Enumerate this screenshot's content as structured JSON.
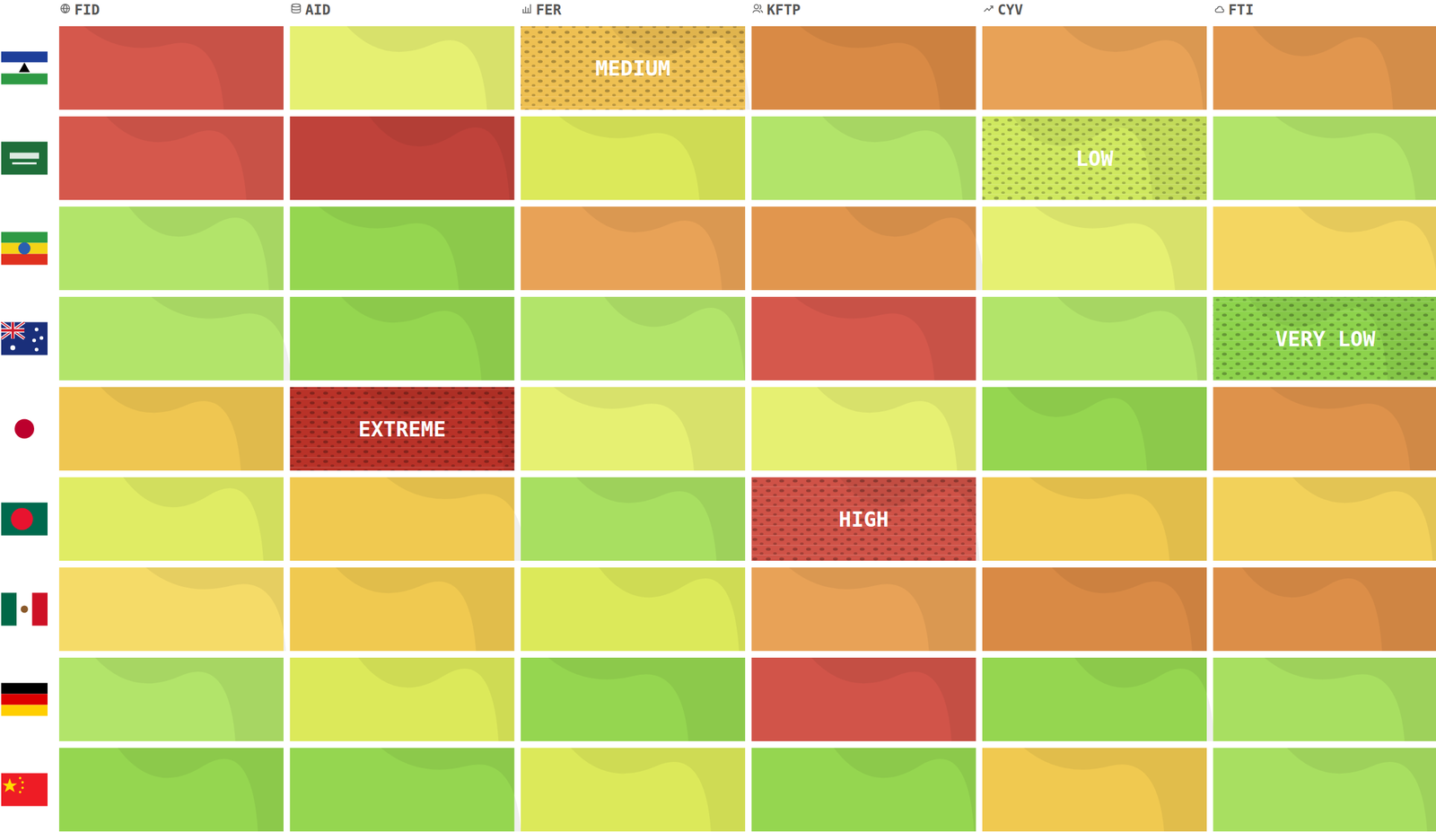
{
  "chart_data": {
    "type": "heatmap",
    "x_categories": [
      "FID",
      "AID",
      "FER",
      "KFTP",
      "CYV",
      "FTI"
    ],
    "value_range": [
      0,
      100
    ],
    "tick_labels": "x",
    "cells": [
      [
        82,
        32,
        50,
        66,
        60,
        63
      ],
      [
        82,
        93,
        25,
        15,
        22,
        15
      ],
      [
        15,
        6,
        60,
        63,
        32,
        42
      ],
      [
        15,
        6,
        15,
        82,
        15,
        4
      ],
      [
        48,
        96,
        32,
        32,
        6,
        64
      ],
      [
        28,
        47,
        12,
        85,
        47,
        44
      ],
      [
        40,
        47,
        25,
        60,
        66,
        65
      ],
      [
        15,
        25,
        6,
        84,
        6,
        12
      ],
      [
        6,
        6,
        25,
        6,
        47,
        12
      ]
    ],
    "cell_labels": [
      [
        null,
        null,
        "MEDIUM",
        null,
        null,
        null
      ],
      [
        null,
        null,
        null,
        null,
        "LOW",
        null
      ],
      [
        null,
        null,
        null,
        null,
        null,
        null
      ],
      [
        null,
        null,
        null,
        null,
        null,
        "VERY LOW"
      ],
      [
        null,
        "EXTREME",
        null,
        null,
        null,
        null
      ],
      [
        null,
        null,
        null,
        "HIGH",
        null,
        null
      ],
      [
        null,
        null,
        null,
        null,
        null,
        null
      ],
      [
        null,
        null,
        null,
        null,
        null,
        null
      ],
      [
        null,
        null,
        null,
        null,
        null,
        null
      ]
    ]
  }
}
